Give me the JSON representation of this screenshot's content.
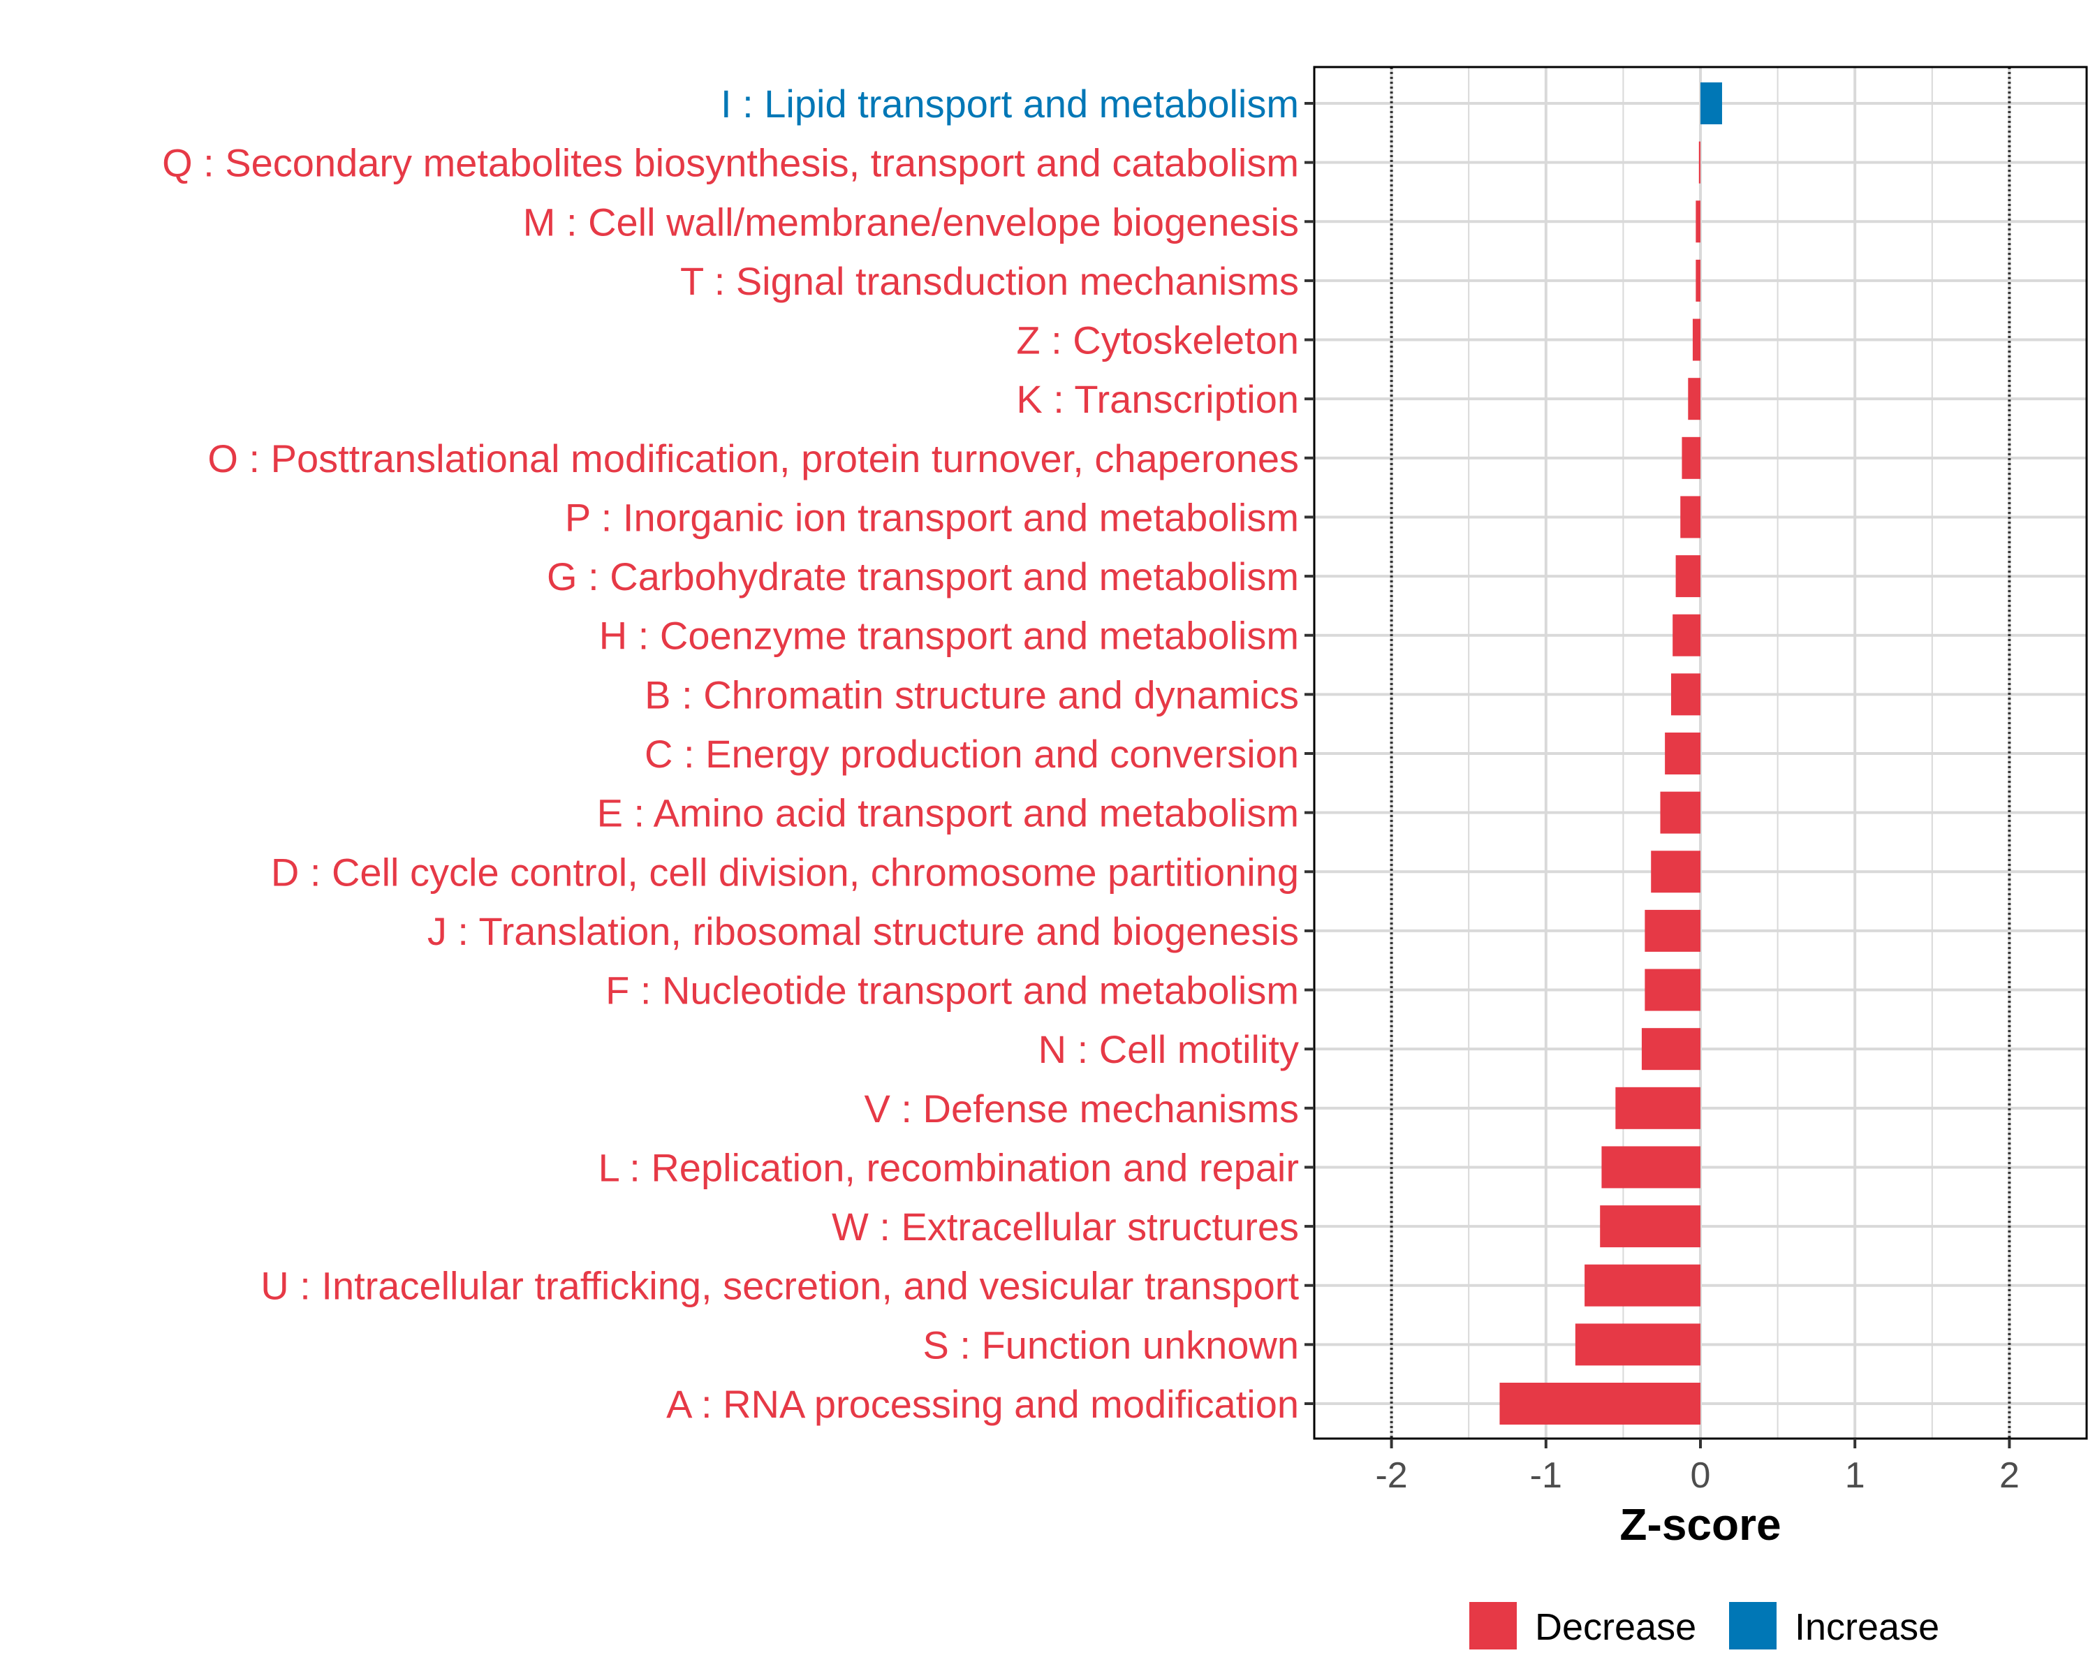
{
  "chart_data": {
    "type": "bar",
    "orientation": "horizontal",
    "title": "",
    "xlabel": "Z-score",
    "ylabel": "",
    "xlim": [
      -2.5,
      2.5
    ],
    "xticks": [
      -2,
      -1,
      0,
      1,
      2
    ],
    "xtick_labels": [
      "-2",
      "-1",
      "0",
      "1",
      "2"
    ],
    "reference_lines": [
      -2,
      2
    ],
    "grid": true,
    "legend_position": "bottom",
    "colors": {
      "Decrease": "#E63946",
      "Increase": "#0077B6"
    },
    "legend": [
      {
        "label": "Decrease",
        "color": "#E63946"
      },
      {
        "label": "Increase",
        "color": "#0077B6"
      }
    ],
    "categories": [
      "I : Lipid transport and metabolism",
      "Q : Secondary metabolites biosynthesis, transport and catabolism",
      "M : Cell wall/membrane/envelope biogenesis",
      "T : Signal transduction mechanisms",
      "Z : Cytoskeleton",
      "K : Transcription",
      "O : Posttranslational modification, protein turnover, chaperones",
      "P : Inorganic ion transport and metabolism",
      "G : Carbohydrate transport and metabolism",
      "H : Coenzyme transport and metabolism",
      "B : Chromatin structure and dynamics",
      "C : Energy production and conversion",
      "E : Amino acid transport and metabolism",
      "D : Cell cycle control, cell division, chromosome partitioning",
      "J : Translation, ribosomal structure and biogenesis",
      "F : Nucleotide transport and metabolism",
      "N : Cell motility",
      "V : Defense mechanisms",
      "L : Replication, recombination and repair",
      "W : Extracellular structures",
      "U : Intracellular trafficking, secretion, and vesicular transport",
      "S : Function unknown",
      "A : RNA processing and modification"
    ],
    "values": [
      0.14,
      -0.01,
      -0.03,
      -0.03,
      -0.05,
      -0.08,
      -0.12,
      -0.13,
      -0.16,
      -0.18,
      -0.19,
      -0.23,
      -0.26,
      -0.32,
      -0.36,
      -0.36,
      -0.38,
      -0.55,
      -0.64,
      -0.65,
      -0.75,
      -0.81,
      -1.3
    ],
    "direction": [
      "Increase",
      "Decrease",
      "Decrease",
      "Decrease",
      "Decrease",
      "Decrease",
      "Decrease",
      "Decrease",
      "Decrease",
      "Decrease",
      "Decrease",
      "Decrease",
      "Decrease",
      "Decrease",
      "Decrease",
      "Decrease",
      "Decrease",
      "Decrease",
      "Decrease",
      "Decrease",
      "Decrease",
      "Decrease",
      "Decrease"
    ]
  }
}
